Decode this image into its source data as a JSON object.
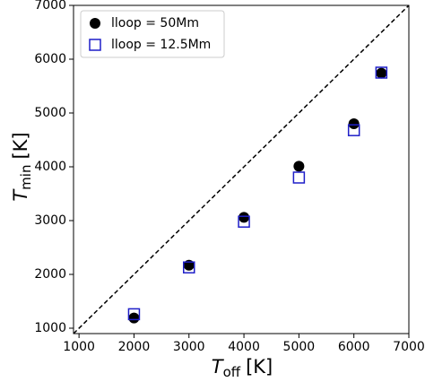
{
  "chart_data": {
    "type": "scatter",
    "xlabel": {
      "symbol": "T",
      "subscript": "off",
      "unit": "[K]"
    },
    "ylabel": {
      "symbol": "T",
      "subscript": "min",
      "unit": "[K]"
    },
    "xlim": [
      900,
      7000
    ],
    "ylim": [
      900,
      7000
    ],
    "xticks": [
      1000,
      2000,
      3000,
      4000,
      5000,
      6000,
      7000
    ],
    "yticks": [
      1000,
      2000,
      3000,
      4000,
      5000,
      6000,
      7000
    ],
    "legend": "upper left",
    "series": [
      {
        "name": "lloop = 50Mm",
        "color": "#000000",
        "marker": "circle",
        "x": [
          2000,
          3000,
          4000,
          5000,
          6000,
          6500
        ],
        "values": [
          1190,
          2170,
          3060,
          4010,
          4800,
          5740
        ]
      },
      {
        "name": "lloop = 12.5Mm",
        "color": "#1f1fc8",
        "marker": "square",
        "x": [
          2000,
          3000,
          4000,
          5000,
          6000,
          6500
        ],
        "values": [
          1260,
          2130,
          2980,
          3800,
          4680,
          5750
        ]
      }
    ]
  }
}
